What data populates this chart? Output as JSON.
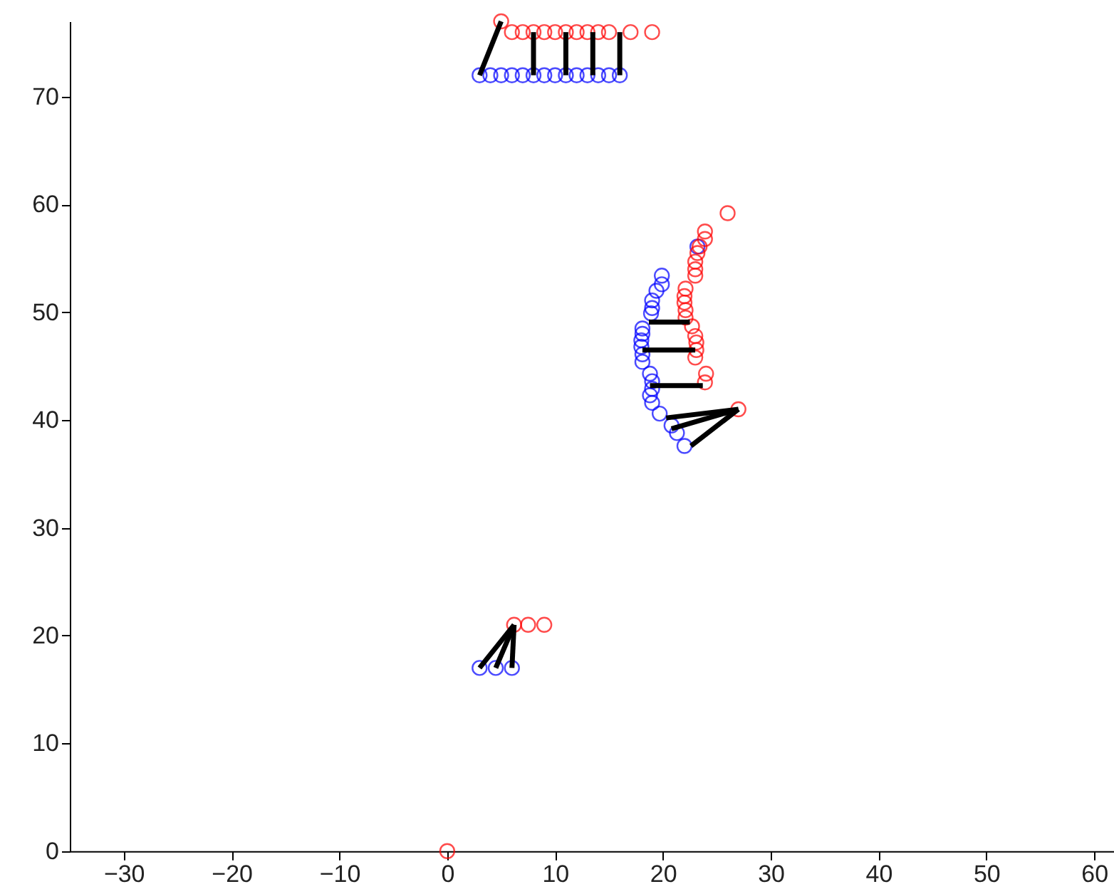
{
  "chart_data": {
    "type": "scatter",
    "marker": "circle",
    "xlim": [
      -35,
      62
    ],
    "ylim": [
      0,
      77
    ],
    "xticks": [
      -30,
      -20,
      -10,
      0,
      10,
      20,
      30,
      40,
      50,
      60
    ],
    "yticks": [
      0,
      10,
      20,
      30,
      40,
      50,
      60,
      70
    ],
    "series": [
      {
        "color": "#0000ff",
        "x": [
          3,
          4,
          5,
          6,
          7,
          8,
          9,
          10,
          11,
          12,
          13,
          14,
          15,
          16,
          3,
          4.5,
          6,
          23.2,
          19.9,
          19.9,
          19.4,
          19,
          19,
          18.9,
          18.1,
          18.1,
          18,
          18,
          18.1,
          18.1,
          18.8,
          19,
          19,
          18.8,
          19,
          19.7,
          20.8,
          21.3,
          22
        ],
        "values": [
          72,
          72,
          72,
          72,
          72,
          72,
          72,
          72,
          72,
          72,
          72,
          72,
          72,
          72,
          17,
          17,
          17,
          56.1,
          53.4,
          52.6,
          52,
          51.1,
          50.4,
          49.9,
          48.5,
          48,
          47.4,
          46.8,
          46.1,
          45.4,
          44.3,
          43.6,
          42.9,
          42.3,
          41.6,
          40.6,
          39.5,
          38.8,
          37.6
        ]
      },
      {
        "color": "#ff0000",
        "x": [
          0,
          5,
          6,
          7,
          8,
          9,
          10,
          11,
          12,
          13,
          14,
          15,
          17,
          19,
          6.2,
          7.5,
          9,
          26,
          23.9,
          23.9,
          23.4,
          23.2,
          23,
          23,
          23,
          22.1,
          22,
          22,
          22.1,
          22.1,
          22.7,
          23,
          23.1,
          23.1,
          23,
          24,
          23.9,
          27
        ],
        "values": [
          0,
          77,
          76,
          76,
          76,
          76,
          76,
          76,
          76,
          76,
          76,
          76,
          76,
          76,
          21,
          21,
          21,
          59.2,
          57.5,
          56.8,
          56.1,
          55.5,
          54.7,
          54,
          53.4,
          52.2,
          51.5,
          50.9,
          50.2,
          49.5,
          48.7,
          47.8,
          47.2,
          46.5,
          45.8,
          44.3,
          43.5,
          41
        ]
      },
      {
        "type": "line",
        "marker": "none",
        "color": "#000000",
        "x": [
          5,
          3
        ],
        "values": [
          77,
          72
        ]
      },
      {
        "type": "line",
        "marker": "none",
        "color": "#000000",
        "x": [
          8,
          8
        ],
        "values": [
          72,
          76
        ]
      },
      {
        "type": "line",
        "marker": "none",
        "color": "#000000",
        "x": [
          11,
          11
        ],
        "values": [
          72,
          76
        ]
      },
      {
        "type": "line",
        "marker": "none",
        "color": "#000000",
        "x": [
          13.5,
          13.5
        ],
        "values": [
          72,
          76
        ]
      },
      {
        "type": "line",
        "marker": "none",
        "color": "#000000",
        "x": [
          16,
          16
        ],
        "values": [
          72,
          76
        ]
      },
      {
        "type": "line",
        "marker": "none",
        "color": "#000000",
        "x": [
          6.2,
          3
        ],
        "values": [
          21,
          17
        ]
      },
      {
        "type": "line",
        "marker": "none",
        "color": "#000000",
        "x": [
          6.2,
          4.5
        ],
        "values": [
          21,
          17
        ]
      },
      {
        "type": "line",
        "marker": "none",
        "color": "#000000",
        "x": [
          6.2,
          6
        ],
        "values": [
          21,
          17
        ]
      },
      {
        "type": "line",
        "marker": "none",
        "color": "#000000",
        "x": [
          18.7,
          22.5
        ],
        "values": [
          49.1,
          49.1
        ]
      },
      {
        "type": "line",
        "marker": "none",
        "color": "#000000",
        "x": [
          18.1,
          23
        ],
        "values": [
          46.5,
          46.5
        ]
      },
      {
        "type": "line",
        "marker": "none",
        "color": "#000000",
        "x": [
          18.8,
          23.7
        ],
        "values": [
          43.2,
          43.2
        ]
      },
      {
        "type": "line",
        "marker": "none",
        "color": "#000000",
        "x": [
          27,
          20.3
        ],
        "values": [
          41,
          40.2
        ]
      },
      {
        "type": "line",
        "marker": "none",
        "color": "#000000",
        "x": [
          27,
          20.8
        ],
        "values": [
          41,
          39.2
        ]
      },
      {
        "type": "line",
        "marker": "none",
        "color": "#000000",
        "x": [
          27,
          22.6
        ],
        "values": [
          41,
          37.6
        ]
      }
    ]
  }
}
